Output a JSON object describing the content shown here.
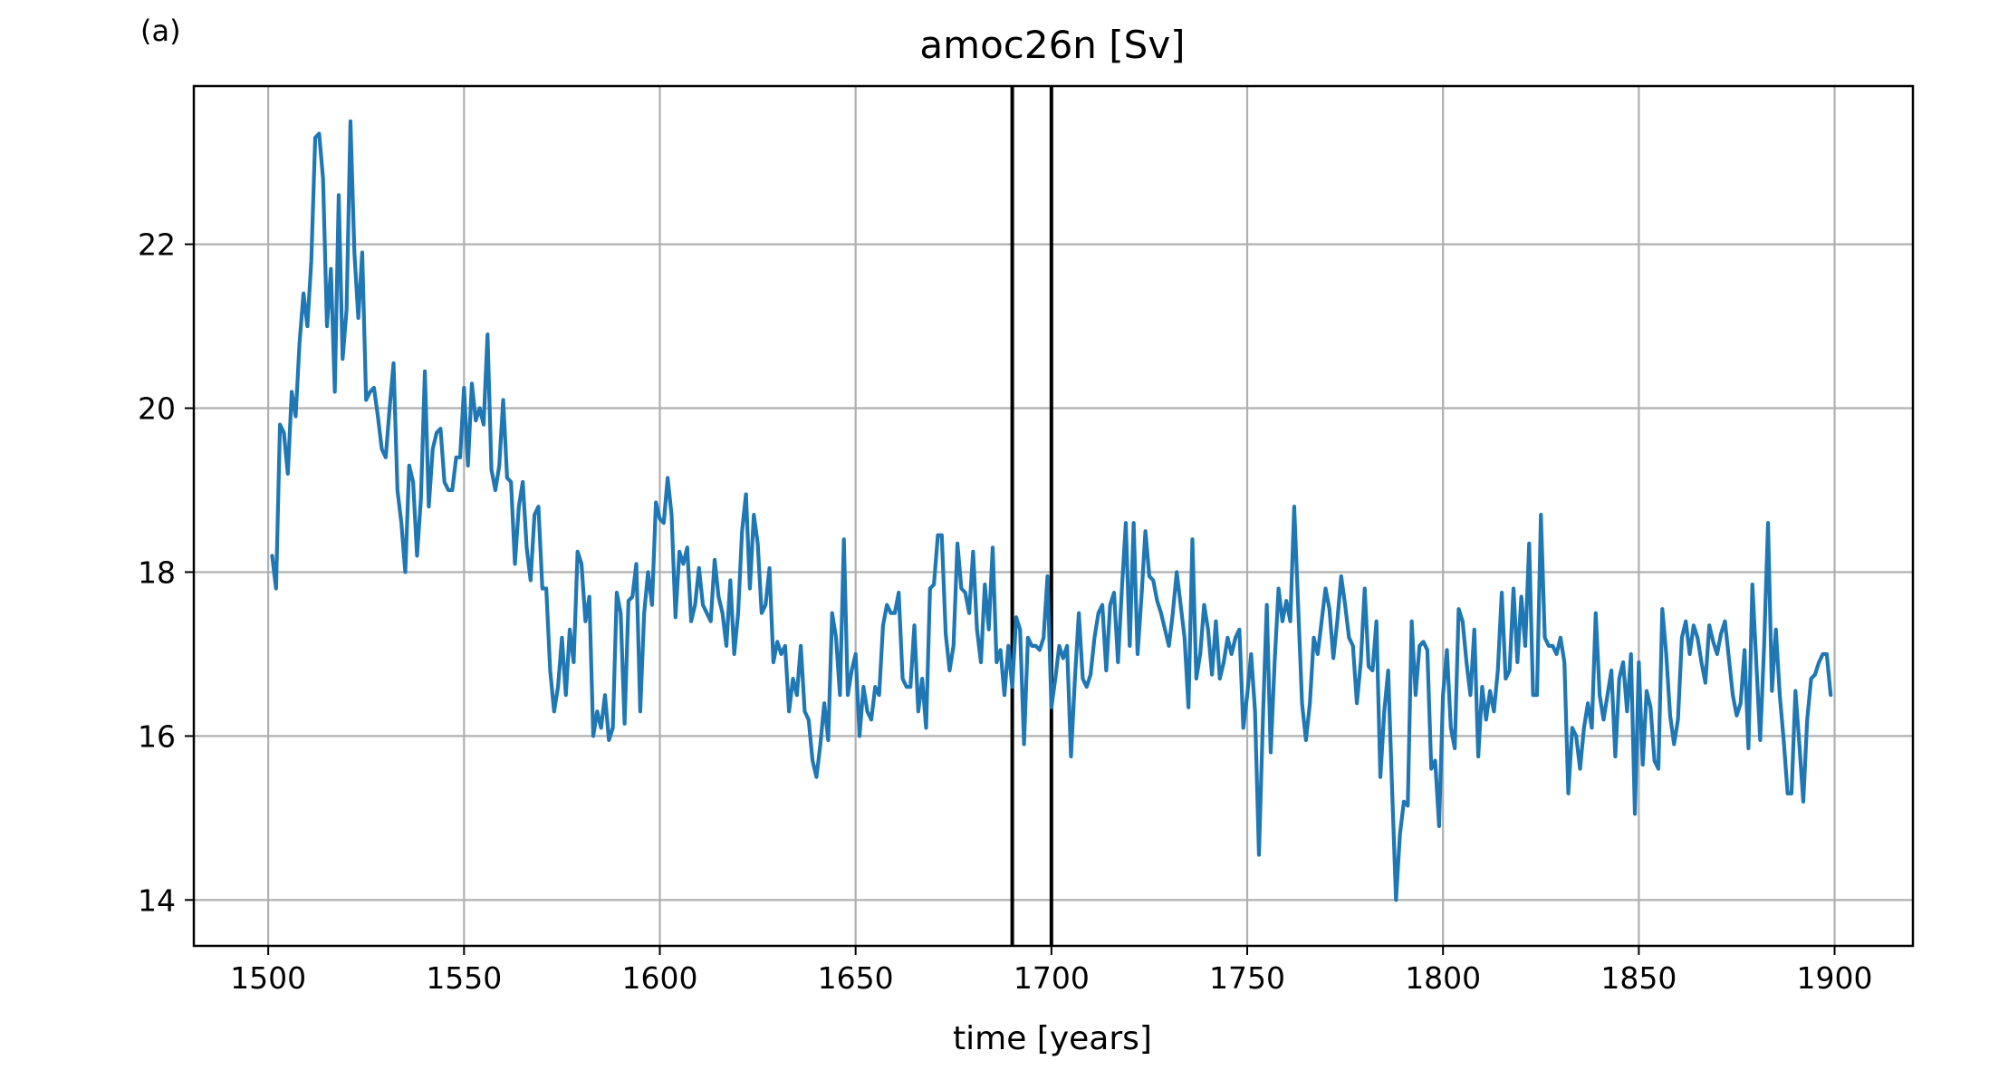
{
  "panel_label": "(a)",
  "colors": {
    "series": "#1f77b4",
    "grid": "#b0b0b0",
    "axes": "#000000",
    "marker_lines": "#000000"
  },
  "chart_data": {
    "type": "line",
    "title": "amoc26n [Sv]",
    "xlabel": "time [years]",
    "ylabel": "",
    "xlim": [
      1481,
      1920
    ],
    "ylim": [
      13.44,
      23.93
    ],
    "grid": true,
    "x_ticks": [
      1500,
      1550,
      1600,
      1650,
      1700,
      1750,
      1800,
      1850,
      1900
    ],
    "y_ticks": [
      14,
      16,
      18,
      20,
      22
    ],
    "x_tick_labels": [
      "1500",
      "1550",
      "1600",
      "1650",
      "1700",
      "1750",
      "1800",
      "1850",
      "1900"
    ],
    "y_tick_labels": [
      "14",
      "16",
      "18",
      "20",
      "22"
    ],
    "vertical_lines": [
      1690,
      1700
    ],
    "series": [
      {
        "x_start": 1501,
        "x_step": 1,
        "values": [
          18.2,
          17.8,
          19.8,
          19.7,
          19.2,
          20.2,
          19.9,
          20.8,
          21.4,
          21.0,
          21.8,
          23.3,
          23.35,
          22.8,
          21.0,
          21.7,
          20.2,
          22.6,
          20.6,
          21.2,
          23.5,
          21.9,
          21.1,
          21.9,
          20.1,
          20.2,
          20.25,
          19.9,
          19.5,
          19.4,
          20.0,
          20.55,
          19.0,
          18.6,
          18.0,
          19.3,
          19.1,
          18.2,
          18.9,
          20.45,
          18.8,
          19.5,
          19.7,
          19.75,
          19.1,
          19.0,
          19.0,
          19.4,
          19.4,
          20.25,
          19.3,
          20.3,
          19.85,
          20.0,
          19.8,
          20.9,
          19.25,
          19.0,
          19.3,
          20.1,
          19.15,
          19.1,
          18.1,
          18.8,
          19.1,
          18.3,
          17.9,
          18.7,
          18.8,
          17.8,
          17.8,
          16.8,
          16.3,
          16.6,
          17.2,
          16.5,
          17.3,
          16.9,
          18.25,
          18.1,
          17.4,
          17.7,
          16.0,
          16.3,
          16.1,
          16.5,
          15.95,
          16.1,
          17.75,
          17.5,
          16.15,
          17.65,
          17.7,
          18.1,
          16.3,
          17.5,
          18.0,
          17.6,
          18.85,
          18.65,
          18.6,
          19.15,
          18.7,
          17.45,
          18.25,
          18.1,
          18.3,
          17.4,
          17.6,
          18.05,
          17.6,
          17.5,
          17.4,
          18.15,
          17.7,
          17.5,
          17.1,
          17.9,
          17.0,
          17.5,
          18.5,
          18.95,
          17.8,
          18.7,
          18.35,
          17.5,
          17.6,
          18.05,
          16.9,
          17.15,
          17.0,
          17.1,
          16.3,
          16.7,
          16.5,
          17.1,
          16.3,
          16.2,
          15.7,
          15.5,
          15.9,
          16.4,
          15.95,
          17.5,
          17.2,
          16.5,
          18.4,
          16.5,
          16.8,
          17.0,
          16.0,
          16.6,
          16.3,
          16.2,
          16.6,
          16.5,
          17.35,
          17.6,
          17.5,
          17.5,
          17.75,
          16.7,
          16.6,
          16.6,
          17.35,
          16.3,
          16.7,
          16.1,
          17.8,
          17.85,
          18.45,
          18.45,
          17.25,
          16.8,
          17.1,
          18.35,
          17.8,
          17.75,
          17.5,
          18.25,
          17.3,
          16.9,
          17.85,
          17.3,
          18.3,
          16.9,
          17.05,
          16.5,
          17.1,
          16.6,
          17.45,
          17.3,
          15.9,
          17.2,
          17.1,
          17.1,
          17.05,
          17.2,
          17.95,
          16.35,
          16.7,
          17.1,
          16.95,
          17.1,
          15.75,
          16.7,
          17.5,
          16.7,
          16.6,
          16.75,
          17.2,
          17.5,
          17.6,
          16.8,
          17.6,
          17.75,
          16.9,
          17.8,
          18.6,
          17.1,
          18.6,
          17.0,
          17.7,
          18.5,
          17.95,
          17.9,
          17.65,
          17.5,
          17.3,
          17.1,
          17.5,
          18.0,
          17.6,
          17.2,
          16.35,
          18.4,
          16.7,
          17.0,
          17.6,
          17.3,
          16.75,
          17.4,
          16.7,
          16.9,
          17.2,
          17.0,
          17.2,
          17.3,
          16.1,
          16.5,
          17.0,
          16.3,
          14.55,
          16.2,
          17.6,
          15.8,
          16.9,
          17.8,
          17.4,
          17.65,
          17.4,
          18.8,
          17.6,
          16.4,
          15.95,
          16.4,
          17.2,
          17.0,
          17.4,
          17.8,
          17.55,
          16.95,
          17.4,
          17.95,
          17.6,
          17.2,
          17.1,
          16.4,
          16.9,
          17.8,
          16.85,
          16.8,
          17.4,
          15.5,
          16.3,
          16.8,
          15.35,
          14.0,
          14.8,
          15.2,
          15.15,
          17.4,
          16.5,
          17.1,
          17.15,
          17.05,
          15.6,
          15.7,
          14.9,
          16.5,
          17.05,
          16.1,
          15.85,
          17.55,
          17.4,
          16.9,
          16.5,
          17.3,
          15.75,
          16.6,
          16.2,
          16.55,
          16.3,
          16.8,
          17.75,
          16.7,
          16.8,
          17.8,
          16.9,
          17.7,
          17.1,
          18.35,
          16.5,
          16.5,
          18.7,
          17.2,
          17.1,
          17.1,
          17.0,
          17.2,
          16.9,
          15.3,
          16.1,
          16.0,
          15.6,
          16.1,
          16.4,
          16.1,
          17.5,
          16.5,
          16.2,
          16.5,
          16.8,
          15.75,
          16.7,
          16.9,
          16.3,
          17.0,
          15.05,
          16.9,
          15.65,
          16.55,
          16.35,
          15.7,
          15.6,
          17.55,
          17.0,
          16.25,
          15.9,
          16.2,
          17.2,
          17.4,
          17.0,
          17.35,
          17.2,
          16.9,
          16.65,
          17.35,
          17.15,
          17.0,
          17.25,
          17.4,
          16.95,
          16.5,
          16.25,
          16.4,
          17.05,
          15.85,
          17.85,
          16.9,
          15.95,
          17.1,
          18.6,
          16.55,
          17.3,
          16.5,
          15.95,
          15.3,
          15.3,
          16.55,
          15.9,
          15.2,
          16.2,
          16.7,
          16.75,
          16.9,
          17.0,
          17.0,
          16.5
        ]
      }
    ]
  }
}
